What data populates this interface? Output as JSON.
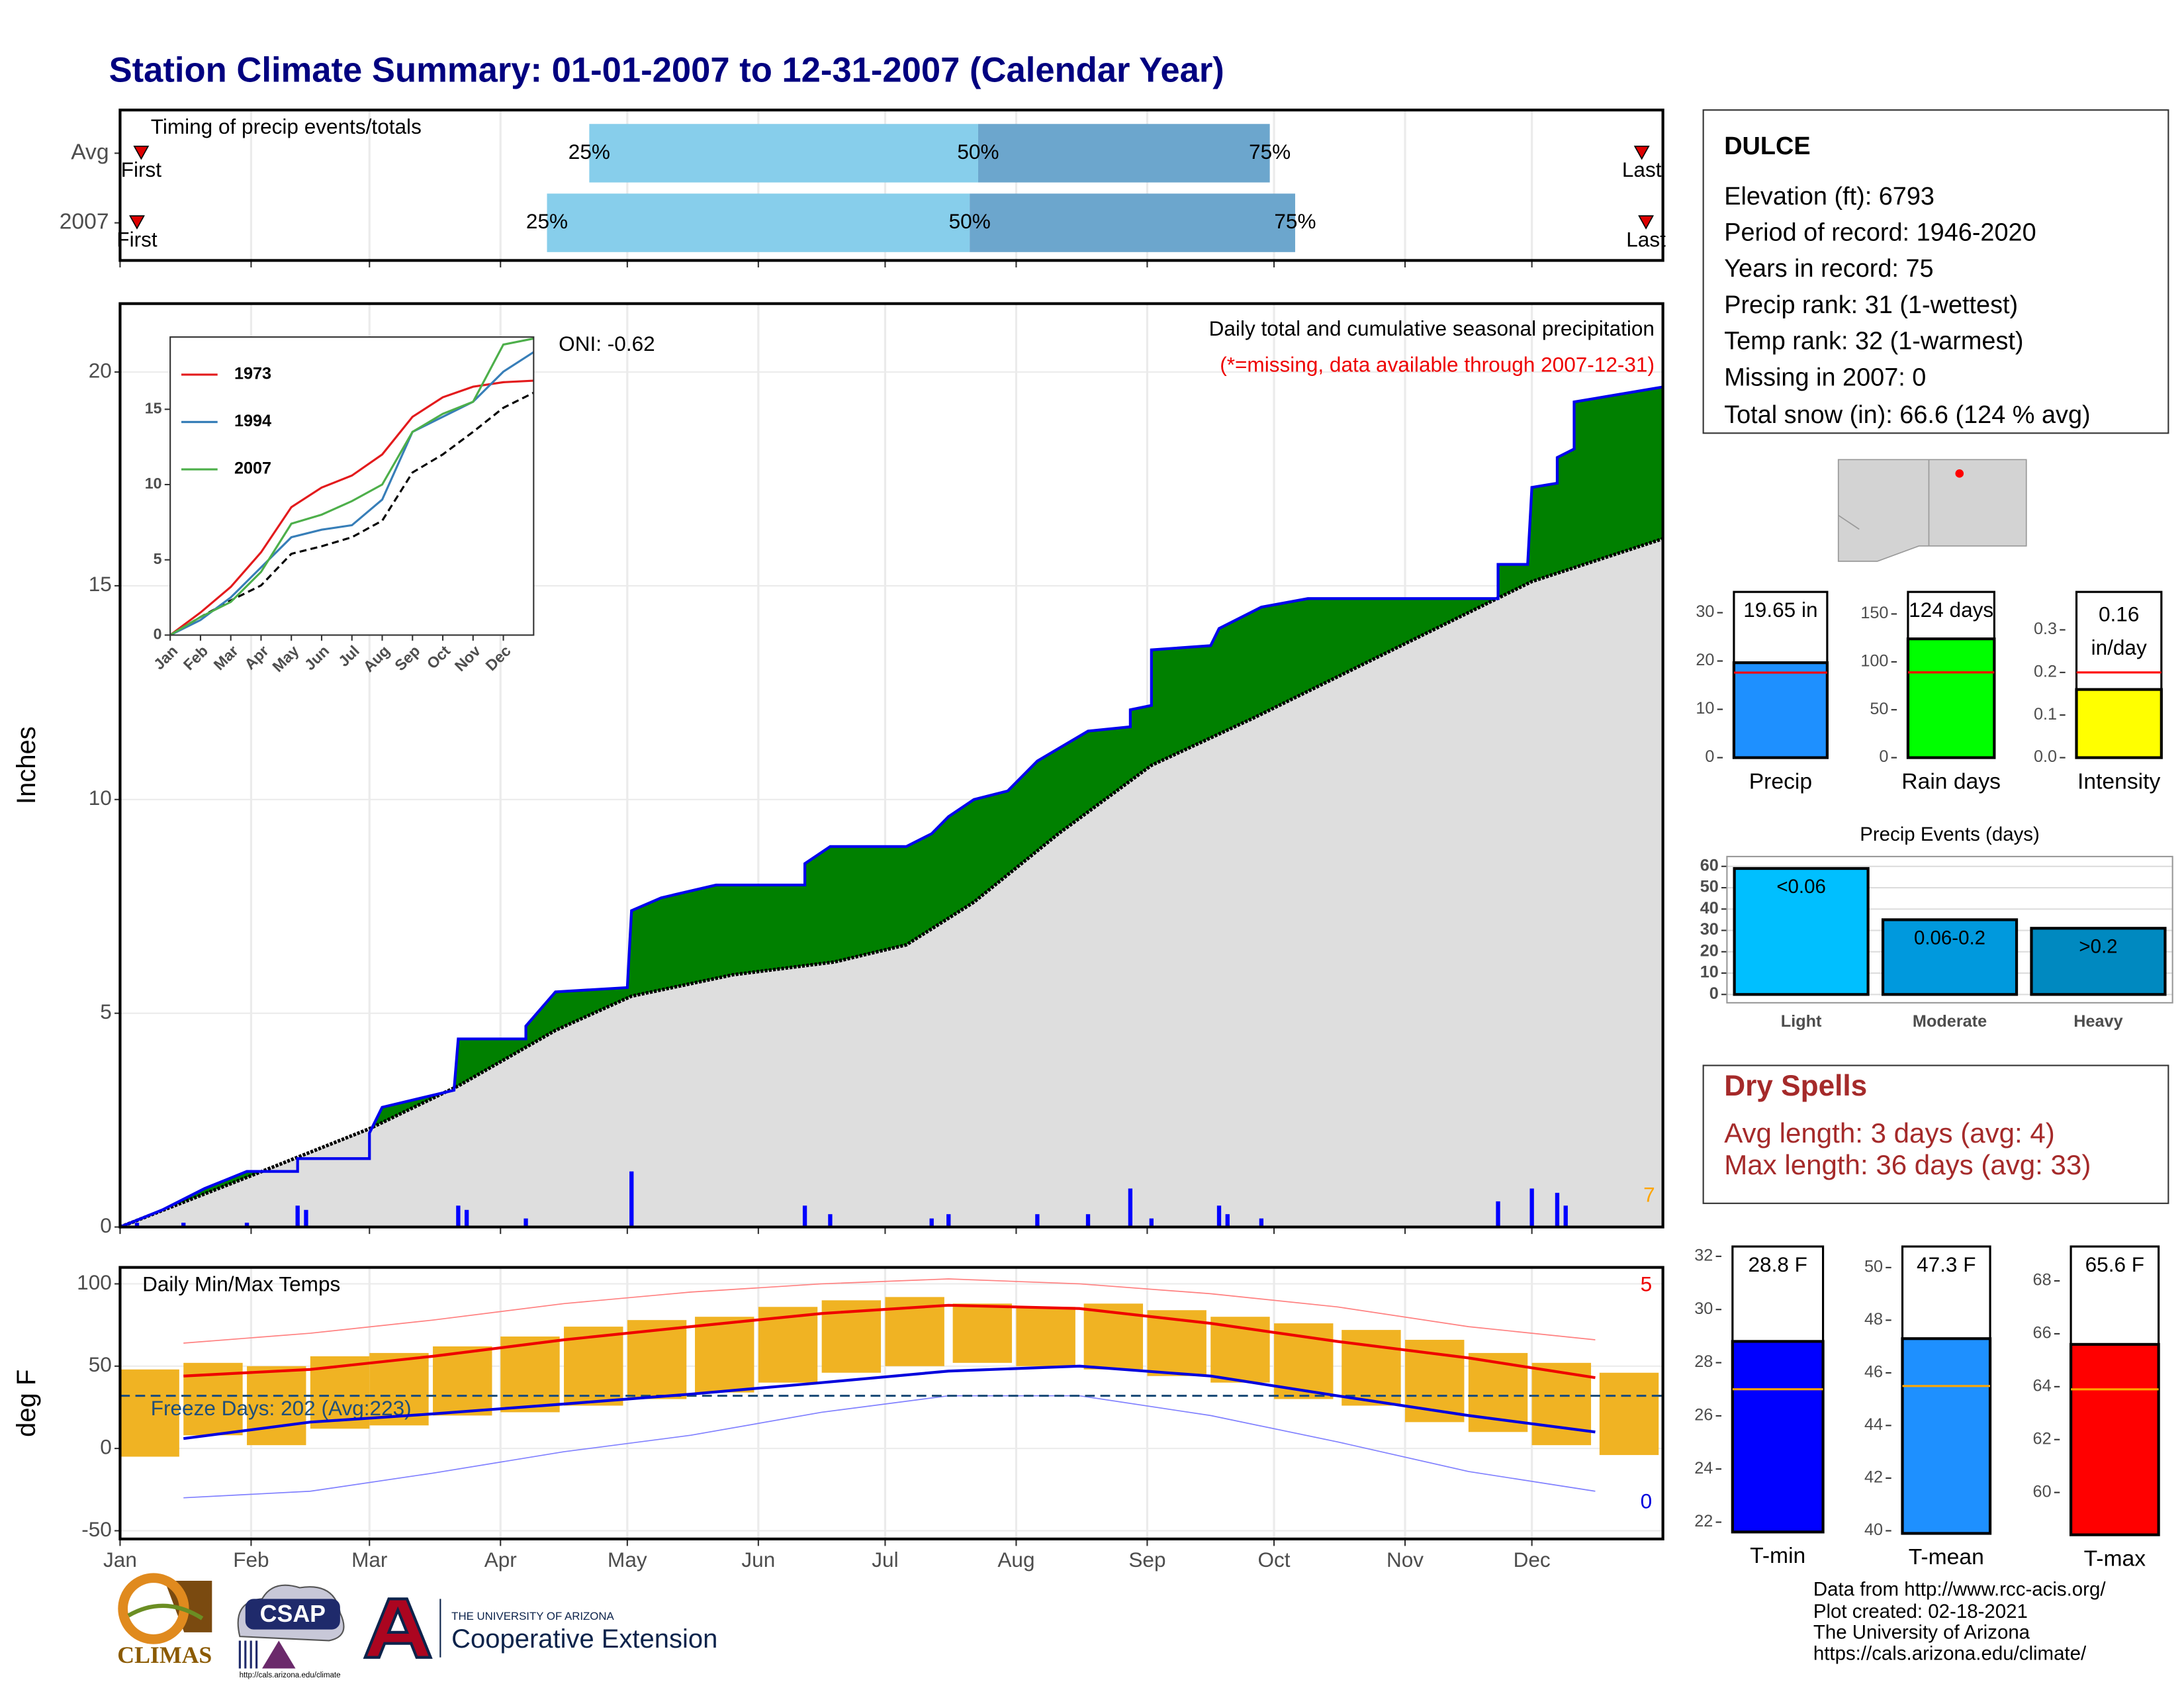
{
  "title": "Station Climate Summary: 01-01-2007 to 12-31-2007 (Calendar Year)",
  "station": {
    "name": "DULCE",
    "lines": [
      "Elevation (ft): 6793",
      "Period of record: 1946-2020",
      "Years in record: 75",
      "Precip rank: 31 (1-wettest)",
      "Temp rank: 32 (1-warmest)",
      "Missing in 2007: 0",
      "Total snow (in): 66.6 (124 % avg)"
    ]
  },
  "dry_spells": {
    "title": "Dry Spells",
    "lines": [
      "Avg length: 3 days (avg: 4)",
      "Max length: 36 days (avg: 33)"
    ]
  },
  "credits": [
    "Data from http://www.rcc-acis.org/",
    "Plot created: 02-18-2021",
    "The University of Arizona",
    "https://cals.arizona.edu/climate/"
  ],
  "logos": {
    "climas": "CLIMAS",
    "csap": "CSAP",
    "csap_url": "http://cals.arizona.edu/climate",
    "ua": "THE UNIVERSITY OF ARIZONA",
    "extension": "Cooperative Extension"
  },
  "chart_data": [
    {
      "type": "timing",
      "title": "Timing of precip events/totals",
      "categories": [
        "Avg",
        "2007"
      ],
      "xlim": [
        0,
        365
      ],
      "xticks": [
        0,
        31,
        59,
        90,
        120,
        151,
        181,
        212,
        243,
        273,
        304,
        334
      ],
      "grid": true,
      "series": [
        {
          "first": 5,
          "q25": 111,
          "q50": 203,
          "q75": 272,
          "last": 360
        },
        {
          "first": 4,
          "q25": 101,
          "q50": 201,
          "q75": 278,
          "last": 361
        }
      ],
      "labels": {
        "first": "First",
        "q25": "25%",
        "q50": "50%",
        "q75": "75%",
        "last": "Last"
      },
      "colors": {
        "early": "#87ceeb",
        "late": "#6ca6cd",
        "marker": "#dd0000"
      }
    },
    {
      "type": "area",
      "ylabel": "Inches",
      "annotation": "Daily total and cumulative seasonal precipitation",
      "note": "(*=missing, data available through 2007-12-31)",
      "oni": "ONI: -0.62",
      "corner_value": 7,
      "xlim": [
        0,
        365
      ],
      "ylim": [
        0,
        21.6
      ],
      "yticks": [
        0,
        5,
        10,
        15,
        20
      ],
      "xticks": [
        0,
        31,
        59,
        90,
        120,
        151,
        181,
        212,
        243,
        273,
        304,
        334
      ],
      "grid": true,
      "cumulative": {
        "color": "#0000ee",
        "fill": "#008000",
        "x": [
          0,
          10,
          20,
          25,
          30,
          42,
          42,
          59,
          59,
          62,
          79,
          80,
          96,
          96,
          103,
          120,
          121,
          128,
          141,
          162,
          162,
          168,
          186,
          192,
          196,
          202,
          210,
          217,
          229,
          239,
          239,
          244,
          244,
          258,
          260,
          270,
          281,
          326,
          326,
          333,
          334,
          340,
          340,
          344,
          344,
          365
        ],
        "values": [
          0,
          0.4,
          0.9,
          1.1,
          1.3,
          1.3,
          1.6,
          1.6,
          2.2,
          2.8,
          3.2,
          4.4,
          4.4,
          4.7,
          5.5,
          5.6,
          7.4,
          7.7,
          8.0,
          8.0,
          8.5,
          8.9,
          8.9,
          9.2,
          9.6,
          10.0,
          10.2,
          10.9,
          11.6,
          11.7,
          12.1,
          12.2,
          13.5,
          13.6,
          14.0,
          14.5,
          14.7,
          14.7,
          15.5,
          15.5,
          17.3,
          17.4,
          18.0,
          18.2,
          19.3,
          19.65
        ]
      },
      "average": {
        "color": "#000000",
        "fill": "#dedede",
        "x": [
          0,
          31,
          59,
          80,
          103,
          121,
          145,
          169,
          186,
          202,
          222,
          244,
          268,
          301,
          334,
          365
        ],
        "values": [
          0,
          1.2,
          2.3,
          3.3,
          4.6,
          5.4,
          5.9,
          6.2,
          6.6,
          7.6,
          9.2,
          10.8,
          11.9,
          13.5,
          15.1,
          16.1
        ]
      },
      "daily": {
        "color": "#0000ff",
        "x": [
          4,
          15,
          30,
          42,
          44,
          80,
          82,
          96,
          121,
          162,
          168,
          192,
          196,
          217,
          229,
          239,
          244,
          260,
          262,
          270,
          326,
          334,
          340,
          342
        ],
        "values": [
          0.1,
          0.1,
          0.1,
          0.5,
          0.4,
          0.5,
          0.4,
          0.2,
          1.3,
          0.5,
          0.3,
          0.2,
          0.3,
          0.3,
          0.3,
          0.9,
          0.2,
          0.5,
          0.3,
          0.2,
          0.6,
          0.9,
          0.8,
          0.5
        ]
      }
    },
    {
      "type": "line",
      "xlim": [
        0,
        12
      ],
      "ylim": [
        0,
        19.8
      ],
      "yticks": [
        0,
        5,
        10,
        15
      ],
      "x": [
        0,
        1,
        2,
        3,
        4,
        5,
        6,
        7,
        8,
        9,
        10,
        11,
        12
      ],
      "xticks": [
        {
          "value": 0,
          "label": "Jan"
        },
        {
          "value": 1,
          "label": "Feb"
        },
        {
          "value": 2,
          "label": "Mar"
        },
        {
          "value": 3,
          "label": "Apr"
        },
        {
          "value": 4,
          "label": "May"
        },
        {
          "value": 5,
          "label": "Jun"
        },
        {
          "value": 6,
          "label": "Jul"
        },
        {
          "value": 7,
          "label": "Aug"
        },
        {
          "value": 8,
          "label": "Sep"
        },
        {
          "value": 9,
          "label": "Oct"
        },
        {
          "value": 10,
          "label": "Nov"
        },
        {
          "value": 11,
          "label": "Dec"
        }
      ],
      "legend": "upper-left",
      "series": [
        {
          "name": "1973",
          "color": "#e31a1c",
          "values": [
            0,
            1.5,
            3.2,
            5.5,
            8.5,
            9.8,
            10.6,
            12.0,
            14.5,
            15.8,
            16.5,
            16.8,
            16.9
          ]
        },
        {
          "name": "1994",
          "color": "#377eb8",
          "values": [
            0,
            1.0,
            2.5,
            4.5,
            6.5,
            7.0,
            7.3,
            9.0,
            13.5,
            14.5,
            15.5,
            17.5,
            18.8
          ]
        },
        {
          "name": "2007",
          "color": "#4daf4a",
          "values": [
            0,
            1.2,
            2.2,
            4.2,
            7.4,
            8.0,
            8.9,
            10.0,
            13.5,
            14.7,
            15.5,
            19.3,
            19.7
          ]
        }
      ],
      "average": {
        "color": "#000000",
        "values": [
          0,
          1.2,
          2.3,
          3.3,
          5.4,
          5.9,
          6.5,
          7.6,
          10.8,
          12.0,
          13.5,
          15.1,
          16.1
        ]
      }
    },
    {
      "type": "temp",
      "title": "Daily Min/Max Temps",
      "ylabel": "deg F",
      "xlim": [
        0,
        365
      ],
      "ylim": [
        -55,
        110
      ],
      "yticks": [
        -50,
        0,
        50,
        100
      ],
      "grid": true,
      "xticks": [
        {
          "value": 0,
          "label": "Jan"
        },
        {
          "value": 31,
          "label": "Feb"
        },
        {
          "value": 59,
          "label": "Mar"
        },
        {
          "value": 90,
          "label": "Apr"
        },
        {
          "value": 120,
          "label": "May"
        },
        {
          "value": 151,
          "label": "Jun"
        },
        {
          "value": 181,
          "label": "Jul"
        },
        {
          "value": 212,
          "label": "Aug"
        },
        {
          "value": 243,
          "label": "Sep"
        },
        {
          "value": 273,
          "label": "Oct"
        },
        {
          "value": 304,
          "label": "Nov"
        },
        {
          "value": 334,
          "label": "Dec"
        }
      ],
      "freeze": {
        "value": 32,
        "label": "Freeze Days: 202 (Avg:223)",
        "color": "#1f4e79"
      },
      "ranges": {
        "color": "#f0b323",
        "x": [
          7,
          22,
          37,
          52,
          66,
          81,
          97,
          112,
          127,
          143,
          158,
          173,
          188,
          204,
          219,
          235,
          250,
          265,
          280,
          296,
          311,
          326,
          341,
          357
        ],
        "lows": [
          -5,
          8,
          2,
          12,
          14,
          20,
          22,
          26,
          30,
          34,
          40,
          46,
          50,
          52,
          50,
          48,
          44,
          40,
          30,
          26,
          16,
          10,
          2,
          -4
        ],
        "highs": [
          48,
          52,
          50,
          56,
          58,
          62,
          68,
          74,
          78,
          80,
          86,
          90,
          92,
          88,
          86,
          88,
          84,
          80,
          76,
          72,
          66,
          58,
          52,
          46
        ]
      },
      "avg_max": {
        "color": "#ee0000",
        "x": [
          15,
          45,
          74,
          105,
          135,
          166,
          196,
          227,
          258,
          288,
          319,
          349
        ],
        "values": [
          44,
          48,
          56,
          66,
          74,
          82,
          87,
          85,
          76,
          65,
          55,
          43
        ]
      },
      "avg_min": {
        "color": "#0000dd",
        "x": [
          15,
          45,
          74,
          105,
          135,
          166,
          196,
          227,
          258,
          288,
          319,
          349
        ],
        "values": [
          6,
          16,
          21,
          27,
          33,
          40,
          47,
          50,
          44,
          32,
          20,
          10
        ]
      },
      "record_max": {
        "color": "#ff8080",
        "x": [
          15,
          45,
          74,
          105,
          135,
          166,
          196,
          227,
          258,
          288,
          319,
          349
        ],
        "values": [
          64,
          70,
          78,
          88,
          95,
          100,
          103,
          100,
          94,
          86,
          74,
          66
        ]
      },
      "record_min": {
        "color": "#8080ff",
        "x": [
          15,
          45,
          74,
          105,
          135,
          166,
          196,
          227,
          258,
          288,
          319,
          349
        ],
        "values": [
          -30,
          -26,
          -15,
          -2,
          8,
          22,
          32,
          32,
          20,
          4,
          -14,
          -26
        ]
      },
      "corner_high": 5,
      "corner_low": 0
    },
    {
      "type": "summary",
      "categories": [
        "Precip"
      ],
      "values": [
        19.65
      ],
      "value_labels": [
        "19.65 in"
      ],
      "avg": 17.6,
      "ylim": [
        0,
        34.3
      ],
      "yticks": [
        0,
        10,
        20,
        30
      ],
      "color": "#1e90ff",
      "avg_color": "#ff0000"
    },
    {
      "type": "summary",
      "categories": [
        "Rain days"
      ],
      "values": [
        124
      ],
      "value_labels": [
        "124 days"
      ],
      "avg": 89,
      "ylim": [
        0,
        173
      ],
      "yticks": [
        0,
        50,
        100,
        150
      ],
      "color": "#00ff00",
      "avg_color": "#ff0000"
    },
    {
      "type": "summary",
      "categories": [
        "Intensity"
      ],
      "values": [
        0.16
      ],
      "unit": "in/day",
      "avg": 0.2,
      "ylim": [
        0,
        0.389
      ],
      "yticks": [
        {
          "value": 0,
          "label": "0.0"
        },
        0.1,
        0.2,
        0.3
      ],
      "color": "#ffff00",
      "avg_color": "#ff0000"
    },
    {
      "type": "bar",
      "title": "Precip Events (days)",
      "categories": [
        "Light",
        "Moderate",
        "Heavy"
      ],
      "values": [
        59,
        35,
        31
      ],
      "bar_labels": [
        "<0.06",
        "0.06-0.2",
        ">0.2"
      ],
      "colors": [
        "#00bfff",
        "#0099dd",
        "#0089c0"
      ],
      "ylim": [
        -3.9,
        64.6
      ],
      "yticks": [
        0,
        10,
        20,
        30,
        40,
        50,
        60
      ],
      "grid": true
    },
    {
      "type": "summary",
      "categories": [
        "T-min"
      ],
      "values": [
        28.8
      ],
      "value_labels": [
        "28.8 F"
      ],
      "avg": 27.0,
      "ylim": [
        21.63,
        32.37
      ],
      "yticks": [
        22,
        24,
        26,
        28,
        30,
        32
      ],
      "color": "#0000ff",
      "avg_color": "#ffa500"
    },
    {
      "type": "summary",
      "categories": [
        "T-mean"
      ],
      "values": [
        47.3
      ],
      "value_labels": [
        "47.3 F"
      ],
      "avg": 45.5,
      "ylim": [
        39.9,
        50.8
      ],
      "yticks": [
        40,
        42,
        44,
        46,
        48,
        50
      ],
      "color": "#1e90ff",
      "avg_color": "#ffa500"
    },
    {
      "type": "summary",
      "categories": [
        "T-max"
      ],
      "values": [
        65.6
      ],
      "value_labels": [
        "65.6 F"
      ],
      "avg": 63.9,
      "ylim": [
        58.4,
        69.3
      ],
      "yticks": [
        60,
        62,
        64,
        66,
        68
      ],
      "color": "#ff0000",
      "avg_color": "#ffa500"
    }
  ]
}
